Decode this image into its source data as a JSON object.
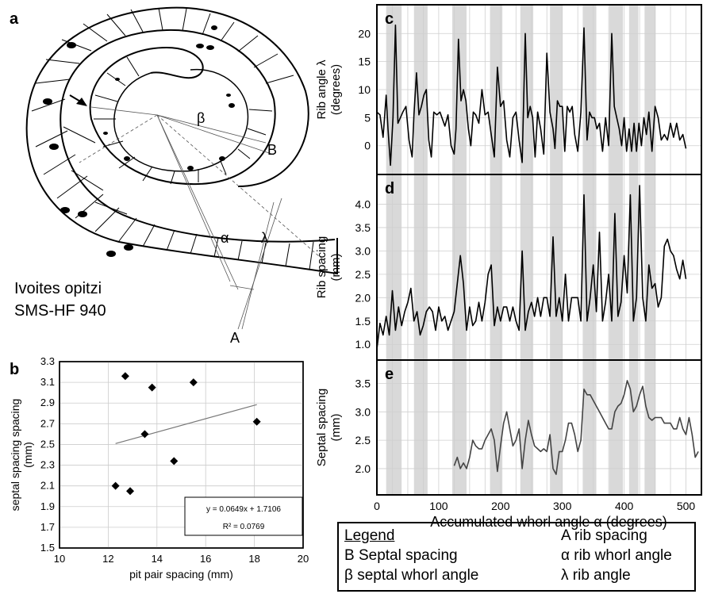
{
  "panels": {
    "a": {
      "letter": "a",
      "species": "Ivoites opitzi",
      "specimen": "SMS-HF 940",
      "labels": {
        "beta": "β",
        "B": "B",
        "alpha": "α",
        "lambda": "λ",
        "A": "A"
      }
    },
    "b": {
      "letter": "b"
    },
    "c": {
      "letter": "c"
    },
    "d": {
      "letter": "d"
    },
    "e": {
      "letter": "e"
    }
  },
  "legend": {
    "title": "Legend",
    "items_left": [
      "B Septal spacing",
      "β septal whorl angle"
    ],
    "items_right": [
      "A rib spacing",
      "α rib whorl angle",
      "λ rib angle"
    ]
  },
  "chart_data": [
    {
      "id": "b",
      "type": "scatter",
      "xlabel": "pit pair spacing (mm)",
      "ylabel": "septal spacing spacing (mm)",
      "xlim": [
        10,
        20
      ],
      "ylim": [
        1.5,
        3.3
      ],
      "xticks": [
        "10",
        "12",
        "14",
        "16",
        "18",
        "20"
      ],
      "yticks": [
        "1.5",
        "1.7",
        "1.9",
        "2.1",
        "2.3",
        "2.5",
        "2.7",
        "2.9",
        "3.1",
        "3.3"
      ],
      "grid": true,
      "points": [
        {
          "x": 12.3,
          "y": 2.1
        },
        {
          "x": 12.7,
          "y": 3.16
        },
        {
          "x": 12.9,
          "y": 2.05
        },
        {
          "x": 13.5,
          "y": 2.6
        },
        {
          "x": 13.8,
          "y": 3.05
        },
        {
          "x": 14.7,
          "y": 2.34
        },
        {
          "x": 15.5,
          "y": 3.1
        },
        {
          "x": 18.1,
          "y": 2.72
        }
      ],
      "trendline": {
        "slope": 0.0649,
        "intercept": 1.7106,
        "x_range": [
          12.3,
          18.1
        ]
      },
      "annotation": {
        "equation": "y = 0.0649x + 1.7106",
        "r2": "R² = 0.0769"
      }
    },
    {
      "id": "c",
      "type": "line",
      "ylabel": "Rib angle λ (degrees)",
      "xlim": [
        0,
        525
      ],
      "ylim": [
        -4,
        24
      ],
      "yticks": [
        "0",
        "5",
        "10",
        "15",
        "20"
      ],
      "grid": true,
      "shaded_bands": [
        [
          15,
          40
        ],
        [
          60,
          82
        ],
        [
          122,
          145
        ],
        [
          183,
          203
        ],
        [
          232,
          253
        ],
        [
          280,
          300
        ],
        [
          333,
          355
        ],
        [
          376,
          398
        ],
        [
          408,
          423
        ],
        [
          433,
          451
        ]
      ],
      "x": [
        0,
        5,
        10,
        15,
        18,
        22,
        26,
        30,
        34,
        38,
        42,
        47,
        52,
        57,
        60,
        64,
        68,
        72,
        76,
        80,
        84,
        88,
        92,
        97,
        102,
        110,
        115,
        120,
        125,
        128,
        132,
        136,
        140,
        144,
        148,
        152,
        156,
        160,
        165,
        170,
        175,
        180,
        185,
        190,
        195,
        200,
        205,
        210,
        215,
        220,
        225,
        230,
        235,
        240,
        244,
        248,
        252,
        256,
        260,
        265,
        270,
        275,
        280,
        285,
        288,
        292,
        296,
        300,
        304,
        308,
        312,
        316,
        320,
        325,
        330,
        335,
        340,
        344,
        348,
        352,
        356,
        360,
        365,
        370,
        375,
        380,
        384,
        388,
        392,
        396,
        400,
        404,
        408,
        412,
        416,
        420,
        424,
        428,
        432,
        436,
        440,
        445,
        450,
        455,
        460,
        465,
        470,
        475,
        480,
        485,
        490,
        495,
        500
      ],
      "y": [
        6,
        5.5,
        1.5,
        9,
        3,
        -3.5,
        5,
        21.5,
        4,
        5,
        6,
        7,
        1,
        -2,
        5.5,
        13,
        5.5,
        7,
        9,
        10,
        1,
        -2,
        6,
        5.5,
        6,
        3.5,
        5.5,
        0,
        -1.5,
        3,
        19,
        8,
        10,
        8,
        3,
        0,
        6,
        5.5,
        4,
        10,
        5.5,
        6,
        2,
        -2,
        14,
        7,
        8,
        1,
        -2,
        5,
        6,
        1,
        -3,
        20,
        5,
        7,
        5,
        -2,
        6,
        3,
        -1.5,
        16.5,
        6,
        3,
        -0.5,
        8,
        7,
        7,
        -1,
        7,
        6,
        7,
        2,
        -1,
        6,
        21,
        1,
        6,
        5,
        5,
        3,
        4,
        -1,
        5,
        0,
        20,
        7,
        5,
        3,
        0,
        5,
        -1,
        3,
        -1,
        4,
        -1,
        4,
        0,
        5,
        2,
        6,
        -1,
        7,
        5,
        1,
        2,
        1,
        4,
        1.5,
        4,
        1,
        2,
        -0.5
      ]
    },
    {
      "id": "d",
      "type": "line",
      "ylabel": "Rib spacing (mm)",
      "xlim": [
        0,
        525
      ],
      "ylim": [
        0.8,
        4.5
      ],
      "yticks": [
        "1.0",
        "1.5",
        "2.0",
        "2.5",
        "3.0",
        "3.5",
        "4.0"
      ],
      "grid": true,
      "shaded_bands": [
        [
          15,
          40
        ],
        [
          60,
          82
        ],
        [
          122,
          145
        ],
        [
          183,
          203
        ],
        [
          232,
          253
        ],
        [
          280,
          300
        ],
        [
          333,
          355
        ],
        [
          376,
          398
        ],
        [
          408,
          423
        ],
        [
          433,
          451
        ]
      ],
      "x": [
        0,
        5,
        10,
        15,
        20,
        25,
        30,
        35,
        40,
        45,
        50,
        55,
        60,
        65,
        70,
        75,
        80,
        85,
        90,
        95,
        100,
        105,
        110,
        115,
        120,
        125,
        130,
        135,
        140,
        145,
        150,
        155,
        160,
        165,
        170,
        175,
        180,
        185,
        190,
        195,
        200,
        205,
        210,
        215,
        220,
        225,
        230,
        235,
        240,
        245,
        250,
        255,
        260,
        265,
        270,
        275,
        280,
        285,
        290,
        295,
        300,
        305,
        310,
        315,
        320,
        325,
        330,
        335,
        340,
        345,
        350,
        355,
        360,
        365,
        370,
        375,
        380,
        385,
        390,
        395,
        400,
        405,
        410,
        415,
        420,
        425,
        430,
        435,
        440,
        445,
        450,
        455,
        460,
        465,
        470,
        475,
        480,
        485,
        490,
        495,
        500
      ],
      "y": [
        0.9,
        1.45,
        1.2,
        1.6,
        1.2,
        2.15,
        1.3,
        1.8,
        1.4,
        1.7,
        1.9,
        2.2,
        1.5,
        1.7,
        1.2,
        1.4,
        1.7,
        1.8,
        1.7,
        1.3,
        1.8,
        1.5,
        1.6,
        1.3,
        1.5,
        1.7,
        2.3,
        2.9,
        2.3,
        1.3,
        1.8,
        1.4,
        1.5,
        1.9,
        1.5,
        1.9,
        2.5,
        2.7,
        1.4,
        1.8,
        1.5,
        1.8,
        1.8,
        1.5,
        1.8,
        1.5,
        1.3,
        3.0,
        1.3,
        1.7,
        1.9,
        1.6,
        2.0,
        1.6,
        2.0,
        2.0,
        1.6,
        3.3,
        1.6,
        2.0,
        1.5,
        2.5,
        1.5,
        2.0,
        2.0,
        2.0,
        1.5,
        4.2,
        1.5,
        2.0,
        2.7,
        1.7,
        3.4,
        1.5,
        1.9,
        2.5,
        1.5,
        3.8,
        1.6,
        1.9,
        2.9,
        2.1,
        4.2,
        1.5,
        2.0,
        4.4,
        2.0,
        1.5,
        2.7,
        2.2,
        2.3,
        1.8,
        2.0,
        3.1,
        3.25,
        3.0,
        2.9,
        2.6,
        2.4,
        2.8,
        2.4
      ]
    },
    {
      "id": "e",
      "type": "line",
      "xlabel": "Accumulated whorl angle α (degrees)",
      "ylabel": "Septal spacing (mm)",
      "xlim": [
        0,
        525
      ],
      "ylim": [
        1.65,
        3.8
      ],
      "xticks": [
        "0",
        "100",
        "200",
        "300",
        "400",
        "500"
      ],
      "yticks": [
        "2.0",
        "2.5",
        "3.0",
        "3.5"
      ],
      "grid": true,
      "shaded_bands": [
        [
          15,
          40
        ],
        [
          60,
          82
        ],
        [
          122,
          145
        ],
        [
          183,
          203
        ],
        [
          232,
          253
        ],
        [
          280,
          300
        ],
        [
          333,
          355
        ],
        [
          376,
          398
        ],
        [
          408,
          423
        ],
        [
          433,
          451
        ]
      ],
      "x": [
        125,
        130,
        135,
        140,
        145,
        150,
        155,
        160,
        165,
        170,
        175,
        180,
        185,
        190,
        195,
        200,
        205,
        210,
        215,
        220,
        225,
        230,
        235,
        240,
        245,
        250,
        255,
        260,
        265,
        270,
        275,
        280,
        285,
        290,
        295,
        300,
        305,
        310,
        315,
        320,
        325,
        330,
        335,
        340,
        345,
        350,
        355,
        360,
        365,
        370,
        375,
        380,
        385,
        390,
        395,
        400,
        405,
        410,
        415,
        420,
        425,
        430,
        435,
        440,
        445,
        450,
        455,
        460,
        465,
        470,
        475,
        480,
        485,
        490,
        495,
        500,
        505,
        510,
        515,
        520
      ],
      "y": [
        2.05,
        2.2,
        2.0,
        2.1,
        2.0,
        2.2,
        2.5,
        2.4,
        2.35,
        2.35,
        2.5,
        2.6,
        2.7,
        2.5,
        1.95,
        2.4,
        2.8,
        3.0,
        2.7,
        2.4,
        2.5,
        2.7,
        2.0,
        2.5,
        2.85,
        2.6,
        2.4,
        2.35,
        2.3,
        2.35,
        2.3,
        2.6,
        2.0,
        1.9,
        2.3,
        2.3,
        2.5,
        2.8,
        2.8,
        2.6,
        2.3,
        2.5,
        3.4,
        3.3,
        3.3,
        3.2,
        3.1,
        3.0,
        2.9,
        2.8,
        2.7,
        2.7,
        3.0,
        3.1,
        3.15,
        3.3,
        3.55,
        3.4,
        3.0,
        3.1,
        3.3,
        3.45,
        3.1,
        2.9,
        2.85,
        2.9,
        2.9,
        2.9,
        2.8,
        2.8,
        2.8,
        2.7,
        2.7,
        2.9,
        2.7,
        2.6,
        2.9,
        2.6,
        2.2,
        2.3
      ]
    }
  ]
}
